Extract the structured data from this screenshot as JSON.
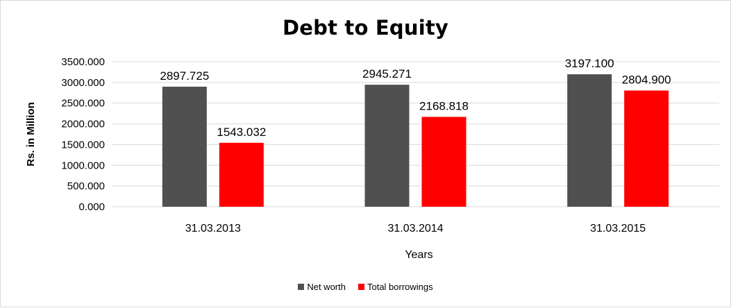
{
  "chart_data": {
    "type": "bar",
    "title": "Debt to Equity",
    "xlabel": "Years",
    "ylabel": "Rs. in Million",
    "categories": [
      "31.03.2013",
      "31.03.2014",
      "31.03.2015"
    ],
    "series": [
      {
        "name": "Net worth",
        "color": "#505050",
        "values": [
          2897.725,
          2945.271,
          3197.1
        ]
      },
      {
        "name": "Total borrowings",
        "color": "#ff0000",
        "values": [
          1543.032,
          2168.818,
          2804.9
        ]
      }
    ],
    "ylim": [
      0,
      3500
    ],
    "yticks": [
      "0.000",
      "500.000",
      "1000.000",
      "1500.000",
      "2000.000",
      "2500.000",
      "3000.000",
      "3500.000"
    ],
    "data_labels": [
      [
        "2897.725",
        "2945.271",
        "3197.100"
      ],
      [
        "1543.032",
        "2168.818",
        "2804.900"
      ]
    ],
    "grid": true,
    "legend_position": "bottom"
  }
}
